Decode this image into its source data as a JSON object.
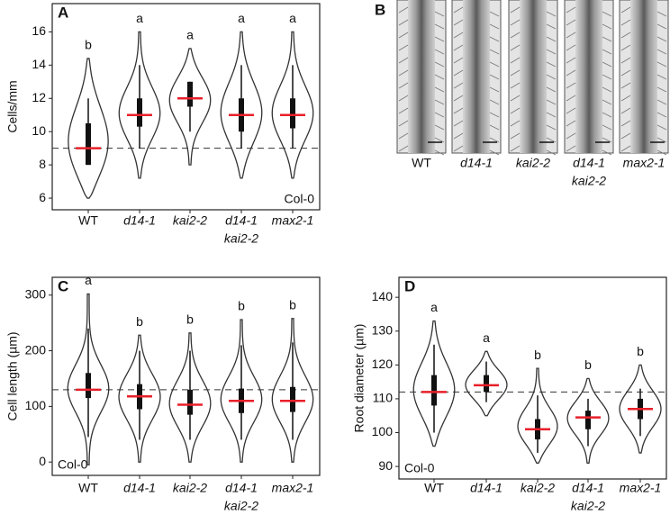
{
  "chart_data": [
    {
      "type": "violin",
      "panel": "A",
      "ylabel": "Cells/mm",
      "categories": [
        [
          "WT"
        ],
        [
          "d14-1"
        ],
        [
          "kai2-2"
        ],
        [
          "d14-1",
          "kai2-2"
        ],
        [
          "max2-1"
        ]
      ],
      "ylim": [
        5.3,
        17.7
      ],
      "yticks": [
        6,
        8,
        10,
        12,
        14,
        16
      ],
      "letters": [
        "b",
        "a",
        "a",
        "a",
        "a"
      ],
      "median": [
        9,
        11,
        12,
        11,
        11
      ],
      "q1": [
        8,
        10.3,
        11.5,
        10,
        10.2
      ],
      "q3": [
        10.5,
        12,
        13,
        12,
        12
      ],
      "whisker_low": [
        8,
        9,
        10,
        9,
        9
      ],
      "whisker_high": [
        12,
        14,
        13,
        14,
        14
      ],
      "min": [
        6,
        7.2,
        8,
        7.2,
        7.2
      ],
      "max": [
        14.4,
        16,
        15,
        16,
        16
      ],
      "reference_line": 9,
      "annotation": "Col-0",
      "annotation_corner": "lower right",
      "median_color": "#e8202a"
    },
    {
      "type": "violin",
      "panel": "C",
      "ylabel": "Cell length (µm)",
      "categories": [
        [
          "WT"
        ],
        [
          "d14-1"
        ],
        [
          "kai2-2"
        ],
        [
          "d14-1",
          "kai2-2"
        ],
        [
          "max2-1"
        ]
      ],
      "ylim": [
        -24,
        332
      ],
      "yticks": [
        0,
        100,
        200,
        300
      ],
      "letters": [
        "a",
        "b",
        "b",
        "b",
        "b"
      ],
      "median": [
        130,
        118,
        103,
        110,
        110
      ],
      "q1": [
        115,
        95,
        85,
        88,
        90
      ],
      "q3": [
        160,
        140,
        130,
        132,
        135
      ],
      "whisker_low": [
        45,
        40,
        40,
        40,
        40
      ],
      "whisker_high": [
        240,
        200,
        200,
        210,
        215
      ],
      "min": [
        -5,
        0,
        0,
        0,
        0
      ],
      "max": [
        302,
        228,
        232,
        256,
        258
      ],
      "reference_line": 130,
      "annotation": "Col-0",
      "annotation_corner": "lower left",
      "median_color": "#e8202a"
    },
    {
      "type": "violin",
      "panel": "D",
      "ylabel": "Root diameter (µm)",
      "categories": [
        [
          "WT"
        ],
        [
          "d14-1"
        ],
        [
          "kai2-2"
        ],
        [
          "d14-1",
          "kai2-2"
        ],
        [
          "max2-1"
        ]
      ],
      "ylim": [
        86.3,
        145.9
      ],
      "yticks": [
        90,
        100,
        110,
        120,
        130,
        140
      ],
      "letters": [
        "a",
        "a",
        "b",
        "b",
        "b"
      ],
      "median": [
        112,
        114,
        101,
        104.5,
        107
      ],
      "q1": [
        108,
        112,
        98,
        101,
        104
      ],
      "q3": [
        117,
        117,
        104,
        106.5,
        110
      ],
      "whisker_low": [
        100,
        109,
        94,
        96,
        99
      ],
      "whisker_high": [
        126,
        121,
        111,
        110,
        113
      ],
      "min": [
        96,
        105,
        91,
        91,
        94
      ],
      "max": [
        133,
        124,
        119,
        116,
        120
      ],
      "reference_line": 112,
      "annotation": "Col-0",
      "annotation_corner": "lower left",
      "median_color": "#e8202a"
    }
  ],
  "image_panel": {
    "panel": "B",
    "captions": [
      [
        "WT"
      ],
      [
        "d14-1"
      ],
      [
        "kai2-2"
      ],
      [
        "d14-1",
        "kai2-2"
      ],
      [
        "max2-1"
      ]
    ]
  }
}
